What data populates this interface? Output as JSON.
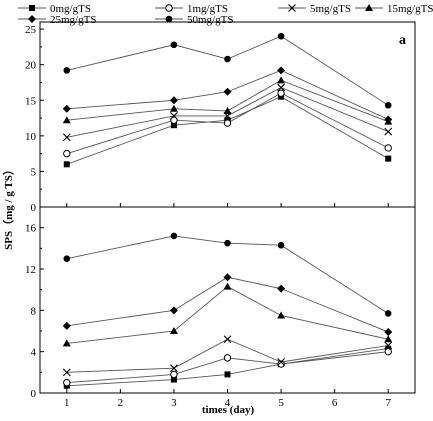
{
  "chart_data": [
    {
      "type": "line",
      "panel_label": "a",
      "x": [
        1,
        3,
        4,
        5,
        7
      ],
      "xlim": [
        0.5,
        7.5
      ],
      "ylim": [
        0,
        26
      ],
      "yticks": [
        0,
        5,
        10,
        15,
        20,
        25
      ],
      "series": [
        {
          "name": "0mg/gTS",
          "marker": "square",
          "values": [
            6.0,
            11.5,
            12.2,
            15.5,
            6.8
          ]
        },
        {
          "name": "1mg/gTS",
          "marker": "circle-open",
          "values": [
            7.5,
            12.2,
            11.8,
            16.0,
            8.3
          ]
        },
        {
          "name": "5mg/gTS",
          "marker": "x",
          "values": [
            9.8,
            12.8,
            12.8,
            16.8,
            10.6
          ]
        },
        {
          "name": "15mg/gTS",
          "marker": "triangle",
          "values": [
            12.2,
            13.8,
            13.5,
            17.8,
            12.0
          ]
        },
        {
          "name": "25mg/gTS",
          "marker": "diamond",
          "values": [
            13.8,
            15.0,
            16.2,
            19.2,
            12.3
          ]
        },
        {
          "name": "50mg/gTS",
          "marker": "circle-filled",
          "values": [
            19.2,
            22.8,
            20.8,
            24.0,
            14.3
          ]
        }
      ]
    },
    {
      "type": "line",
      "x": [
        1,
        3,
        4,
        5,
        7
      ],
      "xlim": [
        0.5,
        7.5
      ],
      "ylim": [
        0,
        18
      ],
      "yticks": [
        0,
        4,
        8,
        12,
        16
      ],
      "xticks": [
        1,
        2,
        3,
        4,
        5,
        6,
        7
      ],
      "xlabel": "times (day)",
      "series": [
        {
          "name": "0mg/gTS",
          "marker": "square",
          "values": [
            0.7,
            1.3,
            1.8,
            2.8,
            4.3
          ]
        },
        {
          "name": "1mg/gTS",
          "marker": "circle-open",
          "values": [
            1.0,
            1.8,
            3.4,
            2.8,
            4.0
          ]
        },
        {
          "name": "5mg/gTS",
          "marker": "x",
          "values": [
            2.0,
            2.4,
            5.2,
            3.0,
            4.6
          ]
        },
        {
          "name": "15mg/gTS",
          "marker": "triangle",
          "values": [
            4.8,
            6.0,
            10.3,
            7.5,
            5.2
          ]
        },
        {
          "name": "25mg/gTS",
          "marker": "diamond",
          "values": [
            6.5,
            8.0,
            11.2,
            10.1,
            5.9
          ]
        },
        {
          "name": "50mg/gTS",
          "marker": "circle-filled",
          "values": [
            13.0,
            15.2,
            14.5,
            14.3,
            7.7
          ]
        }
      ]
    }
  ],
  "shared": {
    "ylabel": "SPS（mg / g TS）"
  }
}
